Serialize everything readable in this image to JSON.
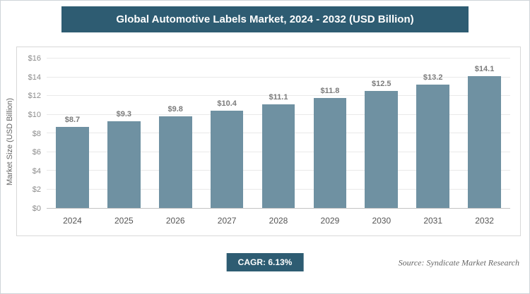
{
  "title": "Global Automotive Labels Market, 2024 - 2032 (USD Billion)",
  "chart_data": {
    "type": "bar",
    "title": "Global Automotive Labels Market, 2024 - 2032 (USD Billion)",
    "categories": [
      "2024",
      "2025",
      "2026",
      "2027",
      "2028",
      "2029",
      "2030",
      "2031",
      "2032"
    ],
    "values": [
      8.7,
      9.3,
      9.8,
      10.4,
      11.1,
      11.8,
      12.5,
      13.2,
      14.1
    ],
    "value_label_prefix": "$",
    "xlabel": "",
    "ylabel": "Market Size (USD Billion)",
    "ylim": [
      0,
      16
    ],
    "ytick_step": 2,
    "ytick_prefix": "$",
    "grid": true,
    "legend": "none",
    "bar_color": "#6f91a2"
  },
  "footer": {
    "cagr_label": "CAGR: 6.13%",
    "source": "Source: Syndicate Market Research"
  },
  "colors": {
    "accent": "#2e5c72",
    "bar": "#6f91a2",
    "grid": "#e9e9e9"
  }
}
